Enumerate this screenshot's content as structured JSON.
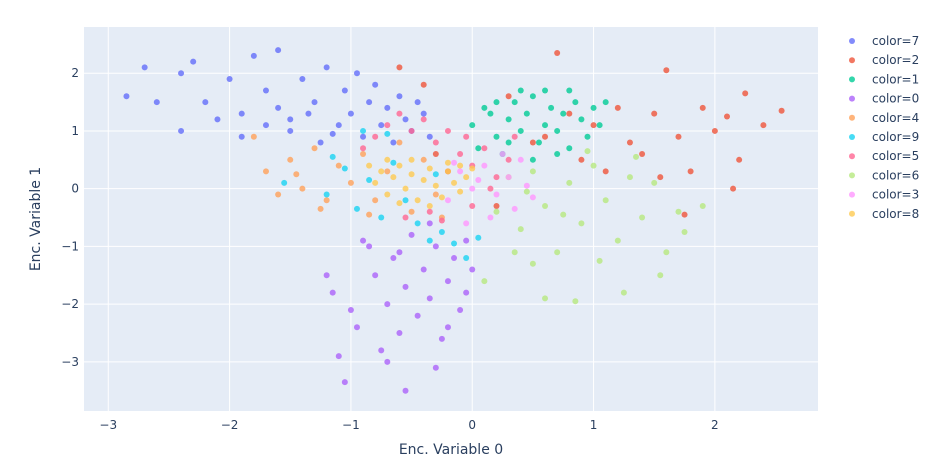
{
  "chart_data": {
    "type": "scatter",
    "title": "",
    "xlabel": "Enc. Variable 0",
    "ylabel": "Enc. Variable 1",
    "xlim": [
      -3.2,
      2.85
    ],
    "ylim": [
      -3.85,
      2.8
    ],
    "x_ticks": [
      -3,
      -2,
      -1,
      0,
      1,
      2
    ],
    "y_ticks": [
      -3,
      -2,
      -1,
      0,
      1,
      2
    ],
    "x_tick_labels": [
      "−3",
      "−2",
      "−1",
      "0",
      "1",
      "2"
    ],
    "y_tick_labels": [
      "−3",
      "−2",
      "−1",
      "0",
      "1",
      "2"
    ],
    "grid": true,
    "legend_position": "right",
    "plot_background": "#e5ecf6",
    "series": [
      {
        "name": "color=7",
        "color": "#636efa",
        "points": [
          [
            -2.85,
            1.6
          ],
          [
            -2.7,
            2.1
          ],
          [
            -2.4,
            2.0
          ],
          [
            -2.3,
            2.2
          ],
          [
            -2.2,
            1.5
          ],
          [
            -2.0,
            1.9
          ],
          [
            -1.9,
            1.3
          ],
          [
            -1.8,
            2.3
          ],
          [
            -1.7,
            1.7
          ],
          [
            -1.6,
            2.4
          ],
          [
            -1.5,
            1.2
          ],
          [
            -1.4,
            1.9
          ],
          [
            -1.3,
            1.5
          ],
          [
            -1.25,
            0.8
          ],
          [
            -1.2,
            2.1
          ],
          [
            -1.1,
            1.1
          ],
          [
            -1.05,
            1.7
          ],
          [
            -1.0,
            1.3
          ],
          [
            -0.95,
            2.0
          ],
          [
            -0.9,
            0.9
          ],
          [
            -0.85,
            1.5
          ],
          [
            -0.8,
            1.8
          ],
          [
            -0.75,
            1.1
          ],
          [
            -0.7,
            1.4
          ],
          [
            -0.65,
            0.8
          ],
          [
            -0.6,
            1.6
          ],
          [
            -0.55,
            1.2
          ],
          [
            -0.5,
            1.0
          ],
          [
            -0.45,
            1.5
          ],
          [
            -0.4,
            1.3
          ],
          [
            -0.35,
            0.9
          ],
          [
            -1.5,
            1.0
          ],
          [
            -1.6,
            1.4
          ],
          [
            -2.1,
            1.2
          ],
          [
            -2.4,
            1.0
          ],
          [
            -2.6,
            1.5
          ],
          [
            -1.9,
            0.9
          ],
          [
            -1.7,
            1.1
          ],
          [
            -1.35,
            1.3
          ],
          [
            -1.15,
            0.95
          ]
        ]
      },
      {
        "name": "color=2",
        "color": "#ef553b",
        "points": [
          [
            0.7,
            2.35
          ],
          [
            1.6,
            2.05
          ],
          [
            2.25,
            1.65
          ],
          [
            2.55,
            1.35
          ],
          [
            1.9,
            1.4
          ],
          [
            2.0,
            1.0
          ],
          [
            2.2,
            0.5
          ],
          [
            1.7,
            0.9
          ],
          [
            1.5,
            1.3
          ],
          [
            1.3,
            0.8
          ],
          [
            1.0,
            1.1
          ],
          [
            0.9,
            0.5
          ],
          [
            1.8,
            0.3
          ],
          [
            2.15,
            0.0
          ],
          [
            1.75,
            -0.45
          ],
          [
            1.1,
            0.3
          ],
          [
            0.5,
            0.8
          ],
          [
            0.3,
            1.6
          ],
          [
            -0.3,
            0.6
          ],
          [
            -0.4,
            1.8
          ],
          [
            -0.6,
            2.1
          ],
          [
            -0.2,
            0.3
          ],
          [
            0.2,
            -0.3
          ],
          [
            0.8,
            1.3
          ],
          [
            1.4,
            0.6
          ],
          [
            2.4,
            1.1
          ],
          [
            2.1,
            1.25
          ],
          [
            1.55,
            0.2
          ],
          [
            1.2,
            1.4
          ],
          [
            0.6,
            0.9
          ]
        ]
      },
      {
        "name": "color=1",
        "color": "#00cc96",
        "points": [
          [
            0.0,
            1.1
          ],
          [
            0.1,
            1.4
          ],
          [
            0.2,
            0.9
          ],
          [
            0.3,
            1.2
          ],
          [
            0.35,
            1.5
          ],
          [
            0.4,
            1.0
          ],
          [
            0.45,
            1.3
          ],
          [
            0.5,
            1.6
          ],
          [
            0.55,
            0.8
          ],
          [
            0.6,
            1.1
          ],
          [
            0.65,
            1.4
          ],
          [
            0.7,
            1.0
          ],
          [
            0.75,
            1.3
          ],
          [
            0.8,
            0.7
          ],
          [
            0.85,
            1.5
          ],
          [
            0.9,
            1.2
          ],
          [
            1.0,
            1.4
          ],
          [
            1.1,
            1.5
          ],
          [
            0.25,
            0.6
          ],
          [
            0.15,
            1.3
          ],
          [
            0.05,
            0.7
          ],
          [
            0.5,
            0.5
          ],
          [
            0.6,
            1.7
          ],
          [
            0.8,
            1.7
          ],
          [
            0.95,
            0.9
          ],
          [
            0.4,
            1.7
          ],
          [
            0.2,
            1.5
          ],
          [
            0.7,
            0.6
          ],
          [
            1.05,
            1.1
          ],
          [
            0.3,
            0.8
          ]
        ]
      },
      {
        "name": "color=0",
        "color": "#ab63fa",
        "points": [
          [
            -0.9,
            -0.9
          ],
          [
            -0.8,
            -1.5
          ],
          [
            -0.7,
            -2.0
          ],
          [
            -0.65,
            -1.2
          ],
          [
            -0.6,
            -2.5
          ],
          [
            -0.55,
            -1.7
          ],
          [
            -0.5,
            -0.8
          ],
          [
            -0.45,
            -2.2
          ],
          [
            -0.4,
            -1.4
          ],
          [
            -0.35,
            -1.9
          ],
          [
            -0.3,
            -1.0
          ],
          [
            -0.25,
            -2.6
          ],
          [
            -0.2,
            -1.6
          ],
          [
            -0.15,
            -1.2
          ],
          [
            -0.1,
            -2.1
          ],
          [
            -0.05,
            -0.9
          ],
          [
            0.0,
            -1.4
          ],
          [
            -1.0,
            -2.1
          ],
          [
            -1.1,
            -2.9
          ],
          [
            -1.05,
            -3.35
          ],
          [
            -0.55,
            -3.5
          ],
          [
            -0.3,
            -3.1
          ],
          [
            -1.15,
            -1.8
          ],
          [
            -0.75,
            -2.8
          ],
          [
            -0.85,
            -1.0
          ],
          [
            -0.6,
            -1.1
          ],
          [
            -0.35,
            -0.6
          ],
          [
            -0.2,
            -2.4
          ],
          [
            -0.05,
            -1.8
          ],
          [
            -1.2,
            -1.5
          ],
          [
            -0.95,
            -2.4
          ],
          [
            -0.7,
            -3.0
          ]
        ]
      },
      {
        "name": "color=4",
        "color": "#ffa15a",
        "points": [
          [
            -1.7,
            0.3
          ],
          [
            -1.5,
            0.5
          ],
          [
            -1.4,
            0.0
          ],
          [
            -1.3,
            0.7
          ],
          [
            -1.2,
            -0.2
          ],
          [
            -1.1,
            0.4
          ],
          [
            -1.0,
            0.1
          ],
          [
            -0.9,
            0.6
          ],
          [
            -0.8,
            -0.2
          ],
          [
            -0.7,
            0.3
          ],
          [
            -0.6,
            0.8
          ],
          [
            -0.5,
            -0.4
          ],
          [
            -0.4,
            0.5
          ],
          [
            -0.3,
            -0.1
          ],
          [
            -1.6,
            -0.1
          ],
          [
            -1.45,
            0.25
          ],
          [
            -0.85,
            -0.45
          ],
          [
            -0.25,
            -0.5
          ],
          [
            -1.25,
            -0.35
          ],
          [
            -1.8,
            0.9
          ]
        ]
      },
      {
        "name": "color=9",
        "color": "#19d3f3",
        "points": [
          [
            -1.55,
            0.1
          ],
          [
            -1.2,
            -0.1
          ],
          [
            -1.05,
            0.35
          ],
          [
            -0.95,
            -0.35
          ],
          [
            -0.85,
            0.15
          ],
          [
            -0.75,
            -0.5
          ],
          [
            -0.65,
            0.45
          ],
          [
            -0.55,
            -0.2
          ],
          [
            -0.45,
            -0.6
          ],
          [
            -0.35,
            -0.9
          ],
          [
            -0.25,
            -0.75
          ],
          [
            -0.15,
            -0.95
          ],
          [
            -0.05,
            -1.2
          ],
          [
            0.05,
            -0.85
          ],
          [
            -0.9,
            1.0
          ],
          [
            -0.7,
            0.95
          ],
          [
            -1.15,
            0.55
          ],
          [
            -0.3,
            0.25
          ]
        ]
      },
      {
        "name": "color=5",
        "color": "#ff6692",
        "points": [
          [
            -0.9,
            0.7
          ],
          [
            -0.8,
            0.9
          ],
          [
            -0.7,
            1.1
          ],
          [
            -0.6,
            1.3
          ],
          [
            -0.5,
            1.0
          ],
          [
            -0.4,
            1.2
          ],
          [
            -0.3,
            0.8
          ],
          [
            -0.2,
            1.0
          ],
          [
            -0.1,
            0.6
          ],
          [
            0.0,
            0.4
          ],
          [
            0.1,
            0.7
          ],
          [
            0.2,
            0.2
          ],
          [
            0.3,
            0.5
          ],
          [
            -0.55,
            -0.5
          ],
          [
            -0.25,
            -0.55
          ],
          [
            0.0,
            -0.3
          ],
          [
            0.15,
            0.0
          ],
          [
            -0.35,
            -0.4
          ],
          [
            0.35,
            0.9
          ],
          [
            -0.05,
            0.9
          ]
        ]
      },
      {
        "name": "color=6",
        "color": "#b6e880",
        "points": [
          [
            0.2,
            -0.4
          ],
          [
            0.3,
            0.2
          ],
          [
            0.4,
            -0.7
          ],
          [
            0.5,
            0.3
          ],
          [
            0.6,
            -0.3
          ],
          [
            0.7,
            -1.1
          ],
          [
            0.8,
            0.1
          ],
          [
            0.9,
            -0.6
          ],
          [
            1.0,
            0.4
          ],
          [
            1.1,
            -0.2
          ],
          [
            1.2,
            -0.9
          ],
          [
            1.3,
            0.2
          ],
          [
            1.4,
            -0.5
          ],
          [
            1.5,
            0.1
          ],
          [
            1.6,
            -1.1
          ],
          [
            1.7,
            -0.4
          ],
          [
            1.9,
            -0.3
          ],
          [
            0.5,
            -1.3
          ],
          [
            0.6,
            -1.9
          ],
          [
            0.85,
            -1.95
          ],
          [
            0.1,
            -1.6
          ],
          [
            1.25,
            -1.8
          ],
          [
            1.55,
            -1.5
          ],
          [
            0.35,
            -1.1
          ],
          [
            0.75,
            -0.45
          ],
          [
            1.05,
            -1.25
          ],
          [
            0.95,
            0.65
          ],
          [
            1.35,
            0.55
          ],
          [
            1.75,
            -0.75
          ],
          [
            0.45,
            -0.05
          ]
        ]
      },
      {
        "name": "color=3",
        "color": "#ff97ff",
        "points": [
          [
            -0.2,
            -0.2
          ],
          [
            -0.1,
            0.3
          ],
          [
            0.0,
            0.0
          ],
          [
            0.1,
            0.4
          ],
          [
            0.2,
            -0.1
          ],
          [
            0.3,
            0.2
          ],
          [
            0.4,
            0.5
          ],
          [
            0.5,
            -0.15
          ],
          [
            0.15,
            -0.5
          ],
          [
            -0.05,
            -0.6
          ],
          [
            0.25,
            0.6
          ],
          [
            0.35,
            -0.35
          ],
          [
            0.05,
            0.15
          ],
          [
            -0.15,
            0.45
          ],
          [
            0.45,
            0.05
          ]
        ]
      },
      {
        "name": "color=8",
        "color": "#fecb52",
        "points": [
          [
            -0.8,
            0.1
          ],
          [
            -0.75,
            0.3
          ],
          [
            -0.7,
            -0.1
          ],
          [
            -0.65,
            0.2
          ],
          [
            -0.6,
            0.4
          ],
          [
            -0.55,
            0.0
          ],
          [
            -0.5,
            0.25
          ],
          [
            -0.45,
            -0.2
          ],
          [
            -0.4,
            0.15
          ],
          [
            -0.35,
            0.35
          ],
          [
            -0.3,
            0.05
          ],
          [
            -0.25,
            -0.15
          ],
          [
            -0.2,
            0.3
          ],
          [
            -0.15,
            0.1
          ],
          [
            -0.1,
            -0.05
          ],
          [
            -0.05,
            0.2
          ],
          [
            0.0,
            0.35
          ],
          [
            -0.6,
            -0.25
          ],
          [
            -0.35,
            -0.3
          ],
          [
            -0.85,
            0.4
          ],
          [
            -0.2,
            0.45
          ],
          [
            -0.5,
            0.5
          ],
          [
            -0.7,
            0.5
          ],
          [
            -0.1,
            0.4
          ]
        ]
      }
    ]
  }
}
